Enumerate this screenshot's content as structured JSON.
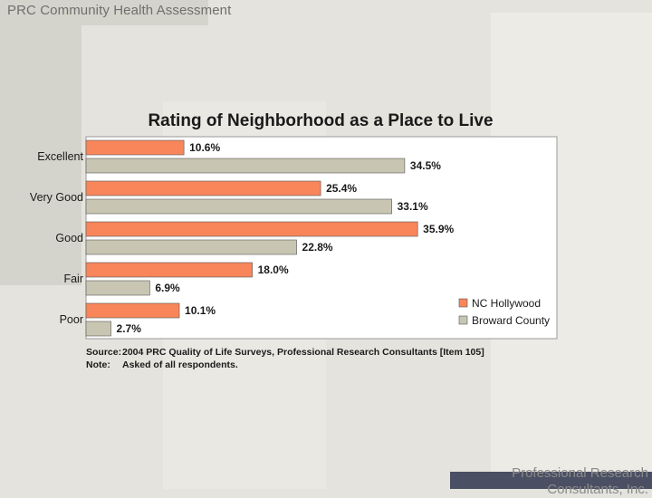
{
  "header": {
    "title": "PRC Community Health Assessment"
  },
  "footer": {
    "company": "Professional Research Consultants, Inc."
  },
  "colors": {
    "series1": "#f8865a",
    "series2": "#c8c6b2",
    "bar_stroke": "#555555"
  },
  "chart_data": {
    "type": "bar",
    "orientation": "horizontal",
    "title": "Rating of Neighborhood as a Place to Live",
    "categories": [
      "Excellent",
      "Very Good",
      "Good",
      "Fair",
      "Poor"
    ],
    "series": [
      {
        "name": "NC Hollywood",
        "values": [
          10.6,
          25.4,
          35.9,
          18.0,
          10.1
        ],
        "labels": [
          "10.6%",
          "25.4%",
          "35.9%",
          "18.0%",
          "10.1%"
        ]
      },
      {
        "name": "Broward County",
        "values": [
          34.5,
          33.1,
          22.8,
          6.9,
          2.7
        ],
        "labels": [
          "34.5%",
          "33.1%",
          "22.8%",
          "6.9%",
          "2.7%"
        ]
      }
    ],
    "xlim": [
      0,
      50
    ],
    "legend": "bottom-right",
    "source_label": "Source:",
    "source_text": "2004 PRC Quality of Life Surveys, Professional Research Consultants [Item 105]",
    "note_label": "Note:",
    "note_text": "Asked of all respondents."
  }
}
